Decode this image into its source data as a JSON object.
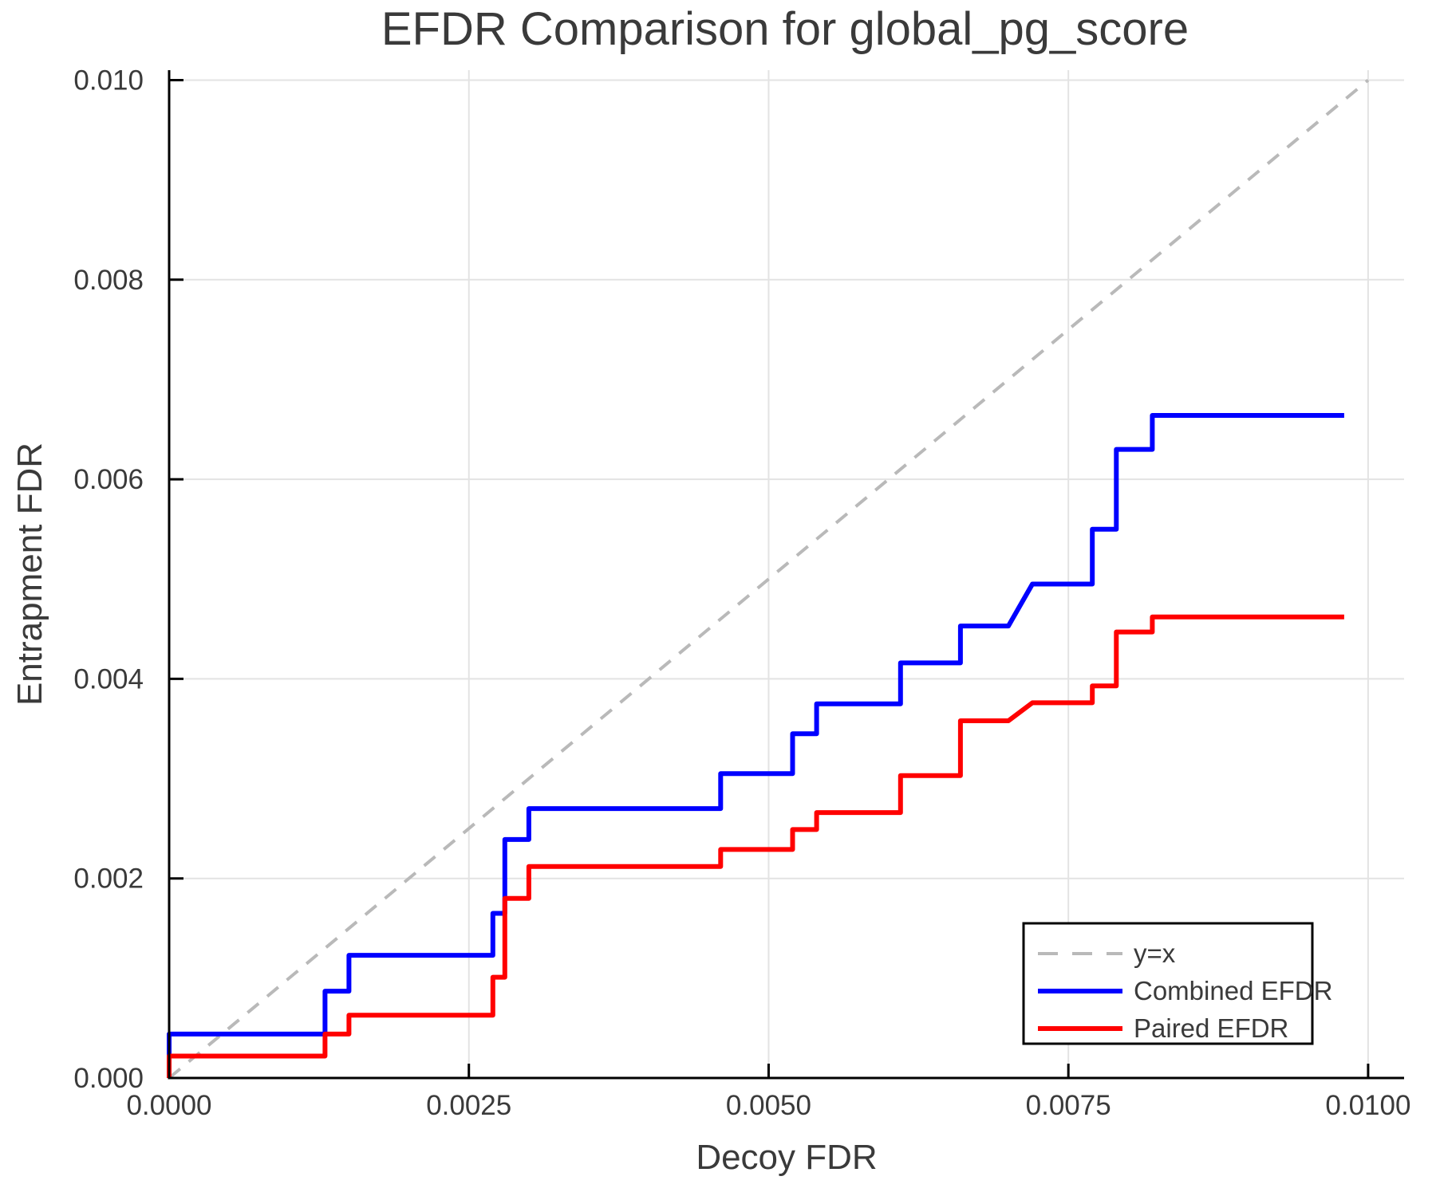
{
  "figure": {
    "background": "#ffffff"
  },
  "chart_data": {
    "type": "line",
    "title": "EFDR Comparison for global_pg_score",
    "xlabel": "Decoy FDR",
    "ylabel": "Entrapment FDR",
    "xlim": [
      0,
      0.0103
    ],
    "ylim": [
      0,
      0.0101
    ],
    "grid": true,
    "grid_color": "#e3e3e3",
    "spine_color": "#000000",
    "text_color": "#3a3a3a",
    "x_ticks": {
      "values": [
        0,
        0.0025,
        0.005,
        0.0075,
        0.01
      ],
      "labels": [
        "0.0000",
        "0.0025",
        "0.0050",
        "0.0075",
        "0.0100"
      ]
    },
    "y_ticks": {
      "values": [
        0,
        0.002,
        0.004,
        0.006,
        0.008,
        0.01
      ],
      "labels": [
        "0.000",
        "0.002",
        "0.004",
        "0.006",
        "0.008",
        "0.010"
      ]
    },
    "legend": {
      "position": "lower right",
      "background": "#ffffff",
      "border_color": "#000000"
    },
    "series": [
      {
        "name": "y=x",
        "role": "reference-line",
        "color": "#b9b9b9",
        "dashed": true,
        "line_width": 4,
        "points": [
          [
            0,
            0
          ],
          [
            0.01,
            0.01
          ]
        ]
      },
      {
        "name": "Combined EFDR",
        "role": "data-line",
        "color": "#0000ff",
        "dashed": false,
        "line_width": 6,
        "points": [
          [
            0,
            0
          ],
          [
            0,
            0.00044
          ],
          [
            0.0013,
            0.00044
          ],
          [
            0.0013,
            0.00087
          ],
          [
            0.0015,
            0.00087
          ],
          [
            0.0015,
            0.00123
          ],
          [
            0.0027,
            0.00123
          ],
          [
            0.0027,
            0.00165
          ],
          [
            0.0028,
            0.00165
          ],
          [
            0.0028,
            0.00239
          ],
          [
            0.003,
            0.00239
          ],
          [
            0.003,
            0.0027
          ],
          [
            0.0046,
            0.0027
          ],
          [
            0.0046,
            0.00305
          ],
          [
            0.0052,
            0.00305
          ],
          [
            0.0052,
            0.00345
          ],
          [
            0.0054,
            0.00345
          ],
          [
            0.0054,
            0.00375
          ],
          [
            0.0061,
            0.00375
          ],
          [
            0.0061,
            0.00416
          ],
          [
            0.0066,
            0.00416
          ],
          [
            0.0066,
            0.00453
          ],
          [
            0.007,
            0.00453
          ],
          [
            0.0072,
            0.00495
          ],
          [
            0.0077,
            0.00495
          ],
          [
            0.0077,
            0.0055
          ],
          [
            0.0079,
            0.0055
          ],
          [
            0.0079,
            0.0063
          ],
          [
            0.0082,
            0.0063
          ],
          [
            0.0082,
            0.00664
          ],
          [
            0.0098,
            0.00664
          ]
        ]
      },
      {
        "name": "Paired EFDR",
        "role": "data-line",
        "color": "#ff0000",
        "dashed": false,
        "line_width": 6,
        "points": [
          [
            0,
            0
          ],
          [
            0,
            0.00022
          ],
          [
            0.0013,
            0.00022
          ],
          [
            0.0013,
            0.00044
          ],
          [
            0.0015,
            0.00044
          ],
          [
            0.0015,
            0.00063
          ],
          [
            0.0027,
            0.00063
          ],
          [
            0.0027,
            0.00101
          ],
          [
            0.0028,
            0.00101
          ],
          [
            0.0028,
            0.0018
          ],
          [
            0.003,
            0.0018
          ],
          [
            0.003,
            0.00212
          ],
          [
            0.0046,
            0.00212
          ],
          [
            0.0046,
            0.00229
          ],
          [
            0.0052,
            0.00229
          ],
          [
            0.0052,
            0.00249
          ],
          [
            0.0054,
            0.00249
          ],
          [
            0.0054,
            0.00266
          ],
          [
            0.0061,
            0.00266
          ],
          [
            0.0061,
            0.00303
          ],
          [
            0.0066,
            0.00303
          ],
          [
            0.0066,
            0.00358
          ],
          [
            0.007,
            0.00358
          ],
          [
            0.0072,
            0.00376
          ],
          [
            0.0077,
            0.00376
          ],
          [
            0.0077,
            0.00393
          ],
          [
            0.0079,
            0.00393
          ],
          [
            0.0079,
            0.00447
          ],
          [
            0.0082,
            0.00447
          ],
          [
            0.0082,
            0.00462
          ],
          [
            0.0098,
            0.00462
          ]
        ]
      }
    ]
  }
}
